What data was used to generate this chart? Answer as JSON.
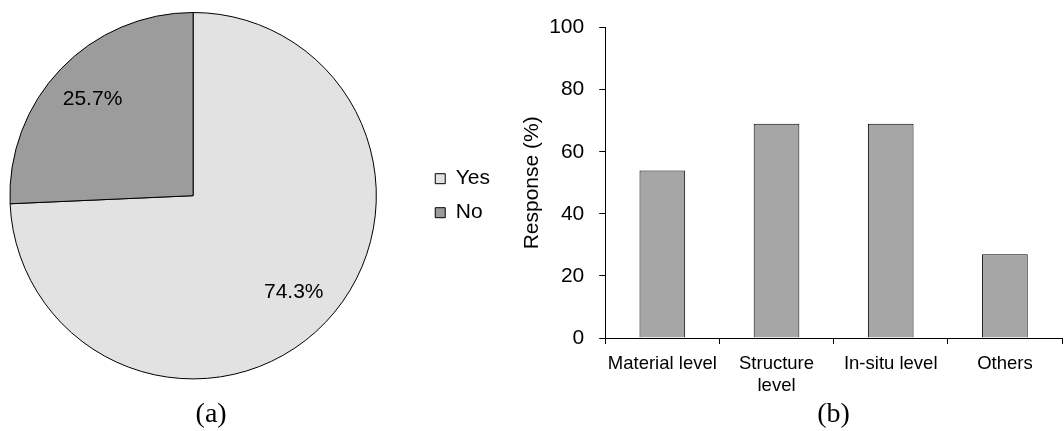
{
  "chart_data": [
    {
      "type": "pie",
      "title": "(a)",
      "categories": [
        "Yes",
        "No"
      ],
      "values": [
        74.3,
        25.7
      ],
      "colors": [
        "#e2e2e2",
        "#9c9c9c"
      ],
      "value_labels": [
        "74.3%",
        "25.7%"
      ],
      "legend": "right"
    },
    {
      "type": "bar",
      "title": "(b)",
      "ylabel": "Response (%)",
      "categories": [
        "Material level",
        "Structure level",
        "In-situ level",
        "Others"
      ],
      "values": [
        54,
        69,
        69,
        27
      ],
      "color": "#a6a6a6",
      "ylim": [
        0,
        100
      ],
      "yticks": [
        0,
        20,
        40,
        60,
        80,
        100
      ],
      "grid": false,
      "legend": false
    }
  ]
}
